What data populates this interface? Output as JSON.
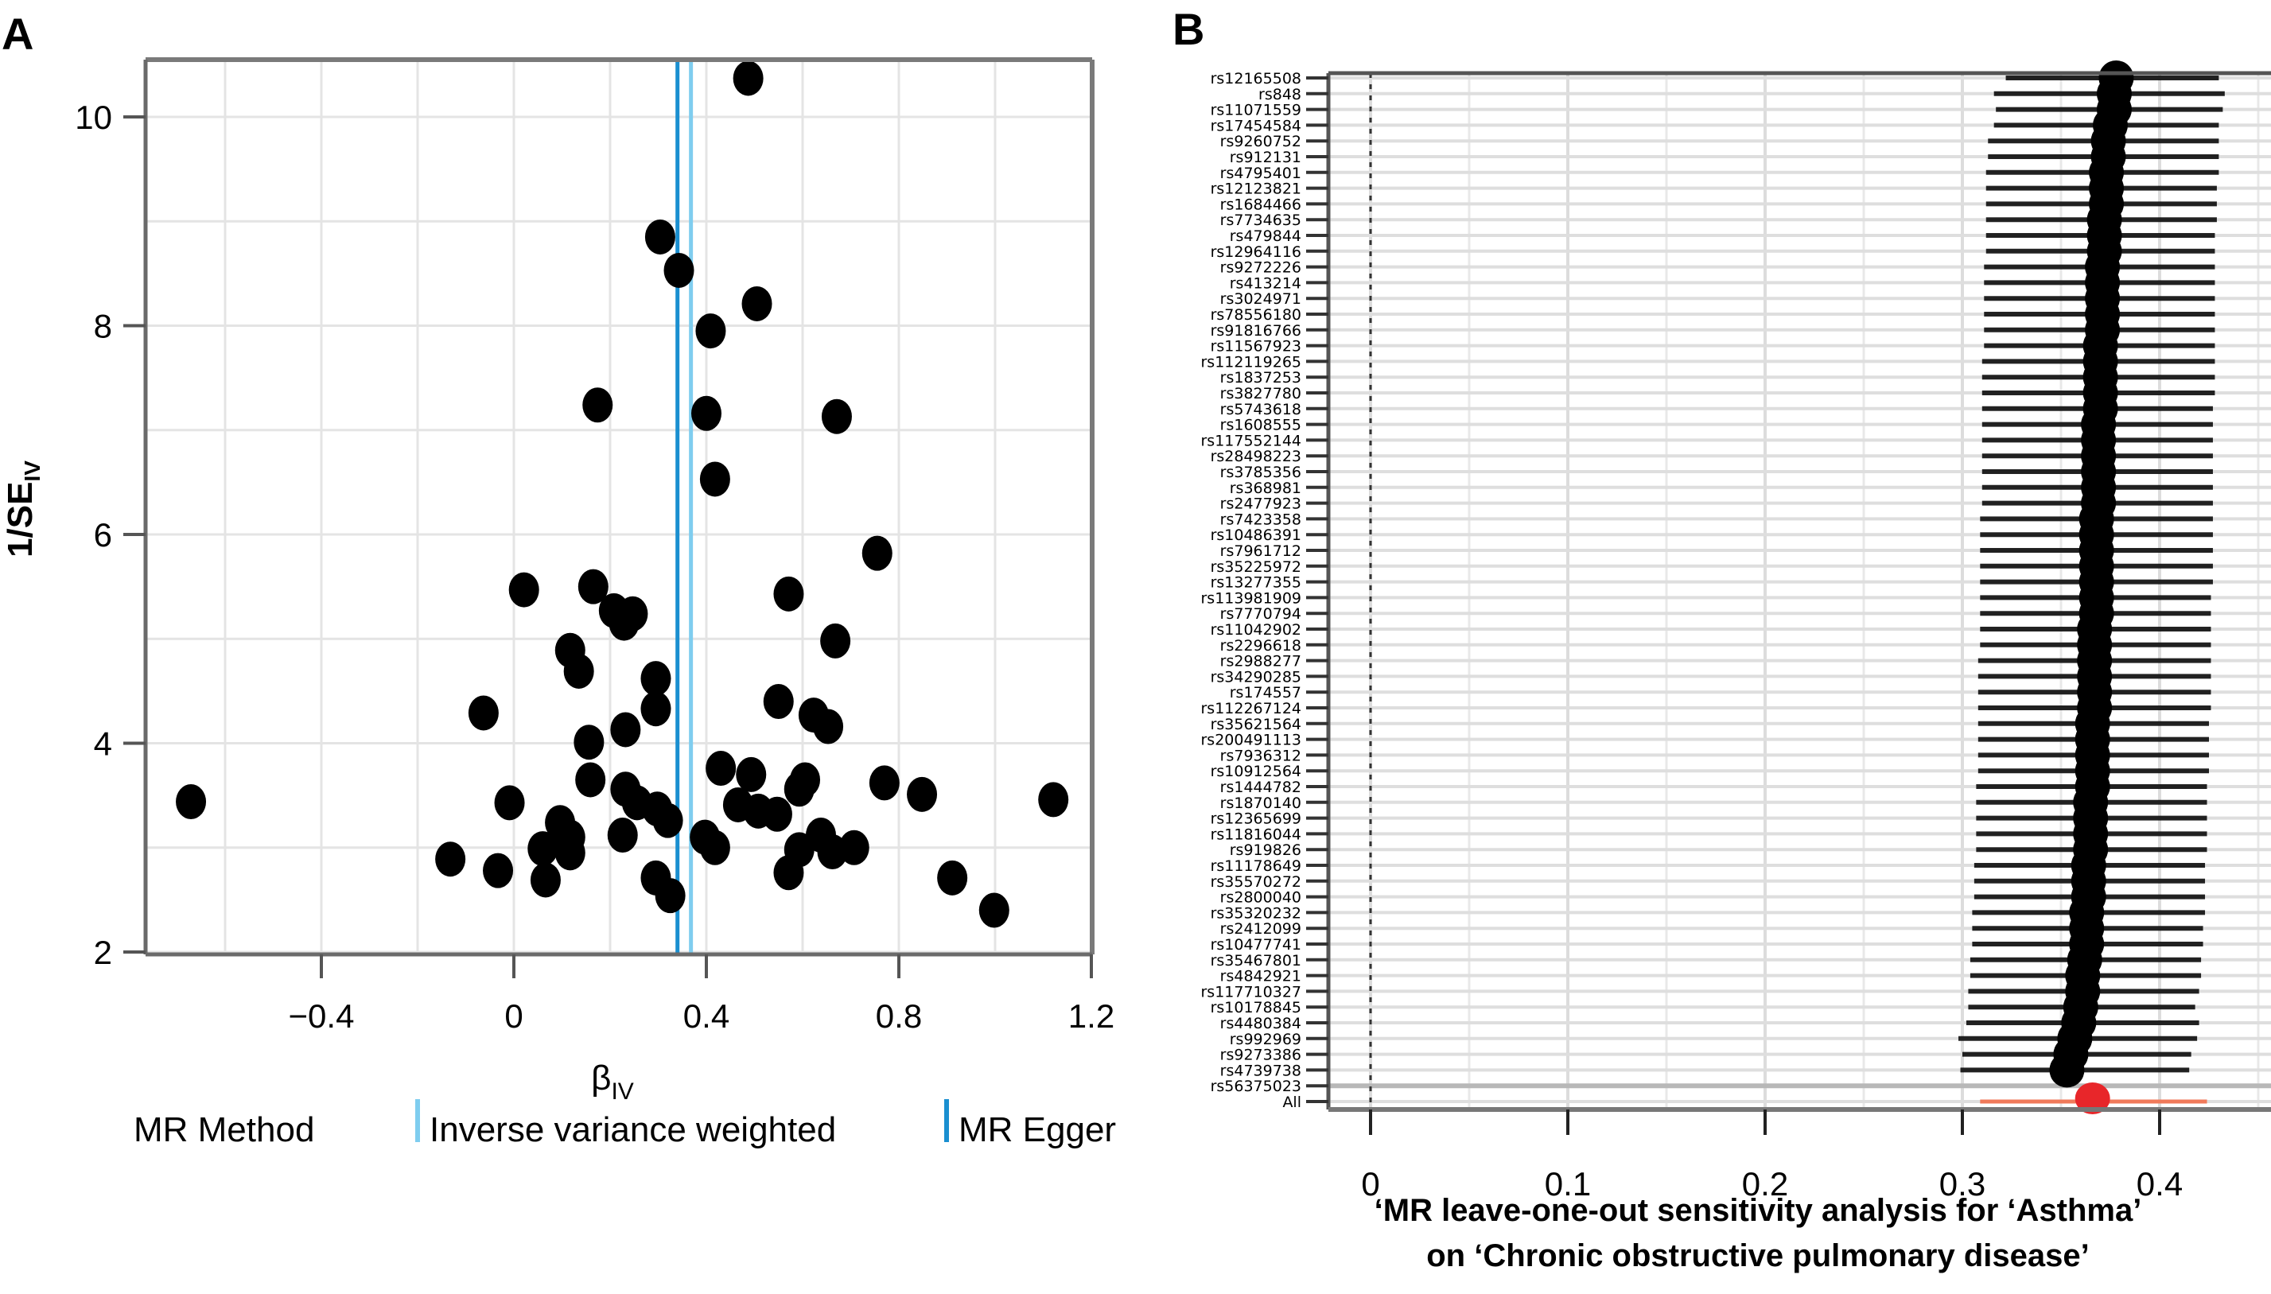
{
  "chart_data": [
    {
      "type": "scatter",
      "panel_label": "A",
      "title": "",
      "xlabel": "β",
      "xlabel_sub": "IV",
      "ylabel": "1/SE",
      "ylabel_sub": "IV",
      "xlim": [
        -0.7,
        1.2
      ],
      "ylim": [
        2,
        10.8
      ],
      "xticks": [
        -0.4,
        0,
        0.4,
        0.8,
        1.2
      ],
      "xtick_labels": [
        "−0.4",
        "0",
        "0.4",
        "0.8",
        "1.2"
      ],
      "yticks": [
        2,
        4,
        6,
        8,
        10
      ],
      "ytick_labels": [
        "2",
        "4",
        "6",
        "8",
        "10"
      ],
      "grid": true,
      "legend": {
        "placement": "bottom",
        "title": "MR Method",
        "entries": [
          {
            "label": "Inverse variance weighted",
            "color": "#7fcdef",
            "value": 0.368
          },
          {
            "label": "MR Egger",
            "color": "#1a8fd0",
            "value": 0.34
          }
        ]
      },
      "points": [
        {
          "x": 0.487,
          "y": 10.37
        },
        {
          "x": 0.304,
          "y": 8.85
        },
        {
          "x": 0.343,
          "y": 8.53
        },
        {
          "x": 0.505,
          "y": 8.21
        },
        {
          "x": 0.409,
          "y": 7.95
        },
        {
          "x": 0.174,
          "y": 7.24
        },
        {
          "x": 0.4,
          "y": 7.16
        },
        {
          "x": 0.671,
          "y": 7.13
        },
        {
          "x": 0.418,
          "y": 6.53
        },
        {
          "x": 0.755,
          "y": 5.82
        },
        {
          "x": 0.021,
          "y": 5.47
        },
        {
          "x": 0.165,
          "y": 5.5
        },
        {
          "x": 0.571,
          "y": 5.43
        },
        {
          "x": 0.208,
          "y": 5.27
        },
        {
          "x": 0.247,
          "y": 5.24
        },
        {
          "x": 0.229,
          "y": 5.15
        },
        {
          "x": 0.668,
          "y": 4.98
        },
        {
          "x": 0.117,
          "y": 4.89
        },
        {
          "x": 0.135,
          "y": 4.69
        },
        {
          "x": 0.295,
          "y": 4.62
        },
        {
          "x": 0.295,
          "y": 4.33
        },
        {
          "x": -0.063,
          "y": 4.29
        },
        {
          "x": 0.55,
          "y": 4.4
        },
        {
          "x": 0.623,
          "y": 4.27
        },
        {
          "x": 0.653,
          "y": 4.16
        },
        {
          "x": 0.232,
          "y": 4.13
        },
        {
          "x": 0.156,
          "y": 4.01
        },
        {
          "x": 0.43,
          "y": 3.76
        },
        {
          "x": 0.493,
          "y": 3.7
        },
        {
          "x": 0.159,
          "y": 3.65
        },
        {
          "x": 0.593,
          "y": 3.56
        },
        {
          "x": 0.605,
          "y": 3.65
        },
        {
          "x": 0.77,
          "y": 3.62
        },
        {
          "x": 0.848,
          "y": 3.51
        },
        {
          "x": -0.671,
          "y": 3.44
        },
        {
          "x": -0.009,
          "y": 3.43
        },
        {
          "x": 0.232,
          "y": 3.56
        },
        {
          "x": 0.256,
          "y": 3.43
        },
        {
          "x": 0.298,
          "y": 3.37
        },
        {
          "x": 0.32,
          "y": 3.26
        },
        {
          "x": 0.466,
          "y": 3.41
        },
        {
          "x": 0.508,
          "y": 3.35
        },
        {
          "x": 0.547,
          "y": 3.32
        },
        {
          "x": 1.121,
          "y": 3.46
        },
        {
          "x": 0.096,
          "y": 3.24
        },
        {
          "x": 0.117,
          "y": 3.1
        },
        {
          "x": 0.226,
          "y": 3.12
        },
        {
          "x": 0.397,
          "y": 3.1
        },
        {
          "x": 0.638,
          "y": 3.12
        },
        {
          "x": 0.06,
          "y": 2.99
        },
        {
          "x": 0.117,
          "y": 2.95
        },
        {
          "x": 0.418,
          "y": 3.0
        },
        {
          "x": 0.593,
          "y": 2.98
        },
        {
          "x": 0.662,
          "y": 2.96
        },
        {
          "x": 0.707,
          "y": 3.0
        },
        {
          "x": -0.132,
          "y": 2.89
        },
        {
          "x": -0.033,
          "y": 2.78
        },
        {
          "x": 0.066,
          "y": 2.69
        },
        {
          "x": 0.295,
          "y": 2.71
        },
        {
          "x": 0.325,
          "y": 2.54
        },
        {
          "x": 0.571,
          "y": 2.76
        },
        {
          "x": 0.911,
          "y": 2.71
        },
        {
          "x": 0.998,
          "y": 2.4
        }
      ],
      "colors": {
        "points": "#000000",
        "ivw": "#7fcdef",
        "egger": "#1a8fd0"
      }
    },
    {
      "type": "forest",
      "panel_label": "B",
      "title_lines": [
        "‘MR leave-one-out sensitivity analysis for ‘Asthma’",
        "on ‘Chronic obstructive pulmonary disease’"
      ],
      "xlim": [
        -0.005,
        0.445
      ],
      "xticks": [
        0,
        0.1,
        0.2,
        0.3,
        0.4
      ],
      "xtick_labels": [
        "0",
        "0.1",
        "0.2",
        "0.3",
        "0.4"
      ],
      "reference_line": 0,
      "grid": true,
      "colors": {
        "snp": "#000000",
        "all": "#e8262a",
        "all_ci": "#f07a5a"
      },
      "rows": [
        {
          "label": "rs12165508",
          "b": 0.378,
          "lo": 0.322,
          "hi": 0.43
        },
        {
          "label": "rs848",
          "b": 0.377,
          "lo": 0.316,
          "hi": 0.433
        },
        {
          "label": "rs11071559",
          "b": 0.377,
          "lo": 0.317,
          "hi": 0.432
        },
        {
          "label": "rs17454584",
          "b": 0.375,
          "lo": 0.316,
          "hi": 0.43
        },
        {
          "label": "rs9260752",
          "b": 0.374,
          "lo": 0.313,
          "hi": 0.43
        },
        {
          "label": "rs912131",
          "b": 0.374,
          "lo": 0.313,
          "hi": 0.43
        },
        {
          "label": "rs4795401",
          "b": 0.373,
          "lo": 0.312,
          "hi": 0.43
        },
        {
          "label": "rs12123821",
          "b": 0.373,
          "lo": 0.312,
          "hi": 0.429
        },
        {
          "label": "rs1684466",
          "b": 0.373,
          "lo": 0.312,
          "hi": 0.429
        },
        {
          "label": "rs7734635",
          "b": 0.372,
          "lo": 0.312,
          "hi": 0.429
        },
        {
          "label": "rs479844",
          "b": 0.372,
          "lo": 0.312,
          "hi": 0.428
        },
        {
          "label": "rs12964116",
          "b": 0.372,
          "lo": 0.312,
          "hi": 0.428
        },
        {
          "label": "rs9272226",
          "b": 0.371,
          "lo": 0.311,
          "hi": 0.428
        },
        {
          "label": "rs413214",
          "b": 0.371,
          "lo": 0.311,
          "hi": 0.428
        },
        {
          "label": "rs3024971",
          "b": 0.371,
          "lo": 0.311,
          "hi": 0.428
        },
        {
          "label": "rs78556180",
          "b": 0.371,
          "lo": 0.311,
          "hi": 0.428
        },
        {
          "label": "rs91816766",
          "b": 0.371,
          "lo": 0.311,
          "hi": 0.428
        },
        {
          "label": "rs11567923",
          "b": 0.37,
          "lo": 0.311,
          "hi": 0.428
        },
        {
          "label": "rs112119265",
          "b": 0.37,
          "lo": 0.31,
          "hi": 0.428
        },
        {
          "label": "rs1837253",
          "b": 0.37,
          "lo": 0.31,
          "hi": 0.428
        },
        {
          "label": "rs3827780",
          "b": 0.37,
          "lo": 0.31,
          "hi": 0.428
        },
        {
          "label": "rs5743618",
          "b": 0.37,
          "lo": 0.31,
          "hi": 0.427
        },
        {
          "label": "rs1608555",
          "b": 0.369,
          "lo": 0.31,
          "hi": 0.427
        },
        {
          "label": "rs117552144",
          "b": 0.369,
          "lo": 0.31,
          "hi": 0.427
        },
        {
          "label": "rs28498223",
          "b": 0.369,
          "lo": 0.31,
          "hi": 0.427
        },
        {
          "label": "rs3785356",
          "b": 0.369,
          "lo": 0.31,
          "hi": 0.427
        },
        {
          "label": "rs368981",
          "b": 0.369,
          "lo": 0.31,
          "hi": 0.427
        },
        {
          "label": "rs2477923",
          "b": 0.369,
          "lo": 0.31,
          "hi": 0.427
        },
        {
          "label": "rs7423358",
          "b": 0.368,
          "lo": 0.309,
          "hi": 0.427
        },
        {
          "label": "rs10486391",
          "b": 0.368,
          "lo": 0.309,
          "hi": 0.427
        },
        {
          "label": "rs7961712",
          "b": 0.368,
          "lo": 0.309,
          "hi": 0.427
        },
        {
          "label": "rs35225972",
          "b": 0.368,
          "lo": 0.309,
          "hi": 0.427
        },
        {
          "label": "rs13277355",
          "b": 0.368,
          "lo": 0.309,
          "hi": 0.427
        },
        {
          "label": "rs113981909",
          "b": 0.368,
          "lo": 0.309,
          "hi": 0.426
        },
        {
          "label": "rs7770794",
          "b": 0.368,
          "lo": 0.309,
          "hi": 0.426
        },
        {
          "label": "rs11042902",
          "b": 0.367,
          "lo": 0.309,
          "hi": 0.426
        },
        {
          "label": "rs2296618",
          "b": 0.367,
          "lo": 0.309,
          "hi": 0.426
        },
        {
          "label": "rs2988277",
          "b": 0.367,
          "lo": 0.308,
          "hi": 0.426
        },
        {
          "label": "rs34290285",
          "b": 0.367,
          "lo": 0.308,
          "hi": 0.426
        },
        {
          "label": "rs174557",
          "b": 0.367,
          "lo": 0.308,
          "hi": 0.426
        },
        {
          "label": "rs112267124",
          "b": 0.367,
          "lo": 0.308,
          "hi": 0.426
        },
        {
          "label": "rs35621564",
          "b": 0.366,
          "lo": 0.308,
          "hi": 0.425
        },
        {
          "label": "rs200491113",
          "b": 0.366,
          "lo": 0.308,
          "hi": 0.425
        },
        {
          "label": "rs7936312",
          "b": 0.366,
          "lo": 0.308,
          "hi": 0.425
        },
        {
          "label": "rs10912564",
          "b": 0.366,
          "lo": 0.308,
          "hi": 0.425
        },
        {
          "label": "rs1444782",
          "b": 0.366,
          "lo": 0.307,
          "hi": 0.424
        },
        {
          "label": "rs1870140",
          "b": 0.365,
          "lo": 0.307,
          "hi": 0.424
        },
        {
          "label": "rs12365699",
          "b": 0.365,
          "lo": 0.307,
          "hi": 0.424
        },
        {
          "label": "rs11816044",
          "b": 0.365,
          "lo": 0.307,
          "hi": 0.424
        },
        {
          "label": "rs919826",
          "b": 0.365,
          "lo": 0.307,
          "hi": 0.424
        },
        {
          "label": "rs11178649",
          "b": 0.364,
          "lo": 0.306,
          "hi": 0.423
        },
        {
          "label": "rs35570272",
          "b": 0.364,
          "lo": 0.306,
          "hi": 0.423
        },
        {
          "label": "rs2800040",
          "b": 0.364,
          "lo": 0.306,
          "hi": 0.423
        },
        {
          "label": "rs35320232",
          "b": 0.363,
          "lo": 0.305,
          "hi": 0.423
        },
        {
          "label": "rs2412099",
          "b": 0.363,
          "lo": 0.305,
          "hi": 0.422
        },
        {
          "label": "rs10477741",
          "b": 0.363,
          "lo": 0.305,
          "hi": 0.422
        },
        {
          "label": "rs35467801",
          "b": 0.362,
          "lo": 0.304,
          "hi": 0.421
        },
        {
          "label": "rs4842921",
          "b": 0.361,
          "lo": 0.304,
          "hi": 0.421
        },
        {
          "label": "rs117710327",
          "b": 0.361,
          "lo": 0.303,
          "hi": 0.42
        },
        {
          "label": "rs10178845",
          "b": 0.36,
          "lo": 0.303,
          "hi": 0.418
        },
        {
          "label": "rs4480384",
          "b": 0.359,
          "lo": 0.302,
          "hi": 0.42
        },
        {
          "label": "rs992969",
          "b": 0.357,
          "lo": 0.298,
          "hi": 0.419
        },
        {
          "label": "rs9273386",
          "b": 0.355,
          "lo": 0.3,
          "hi": 0.416
        },
        {
          "label": "rs4739738",
          "b": 0.353,
          "lo": 0.299,
          "hi": 0.415
        },
        {
          "label": "rs56375023",
          "b": null,
          "lo": null,
          "hi": null
        },
        {
          "label": "All",
          "b": 0.366,
          "lo": 0.309,
          "hi": 0.424,
          "summary": true
        }
      ]
    }
  ]
}
